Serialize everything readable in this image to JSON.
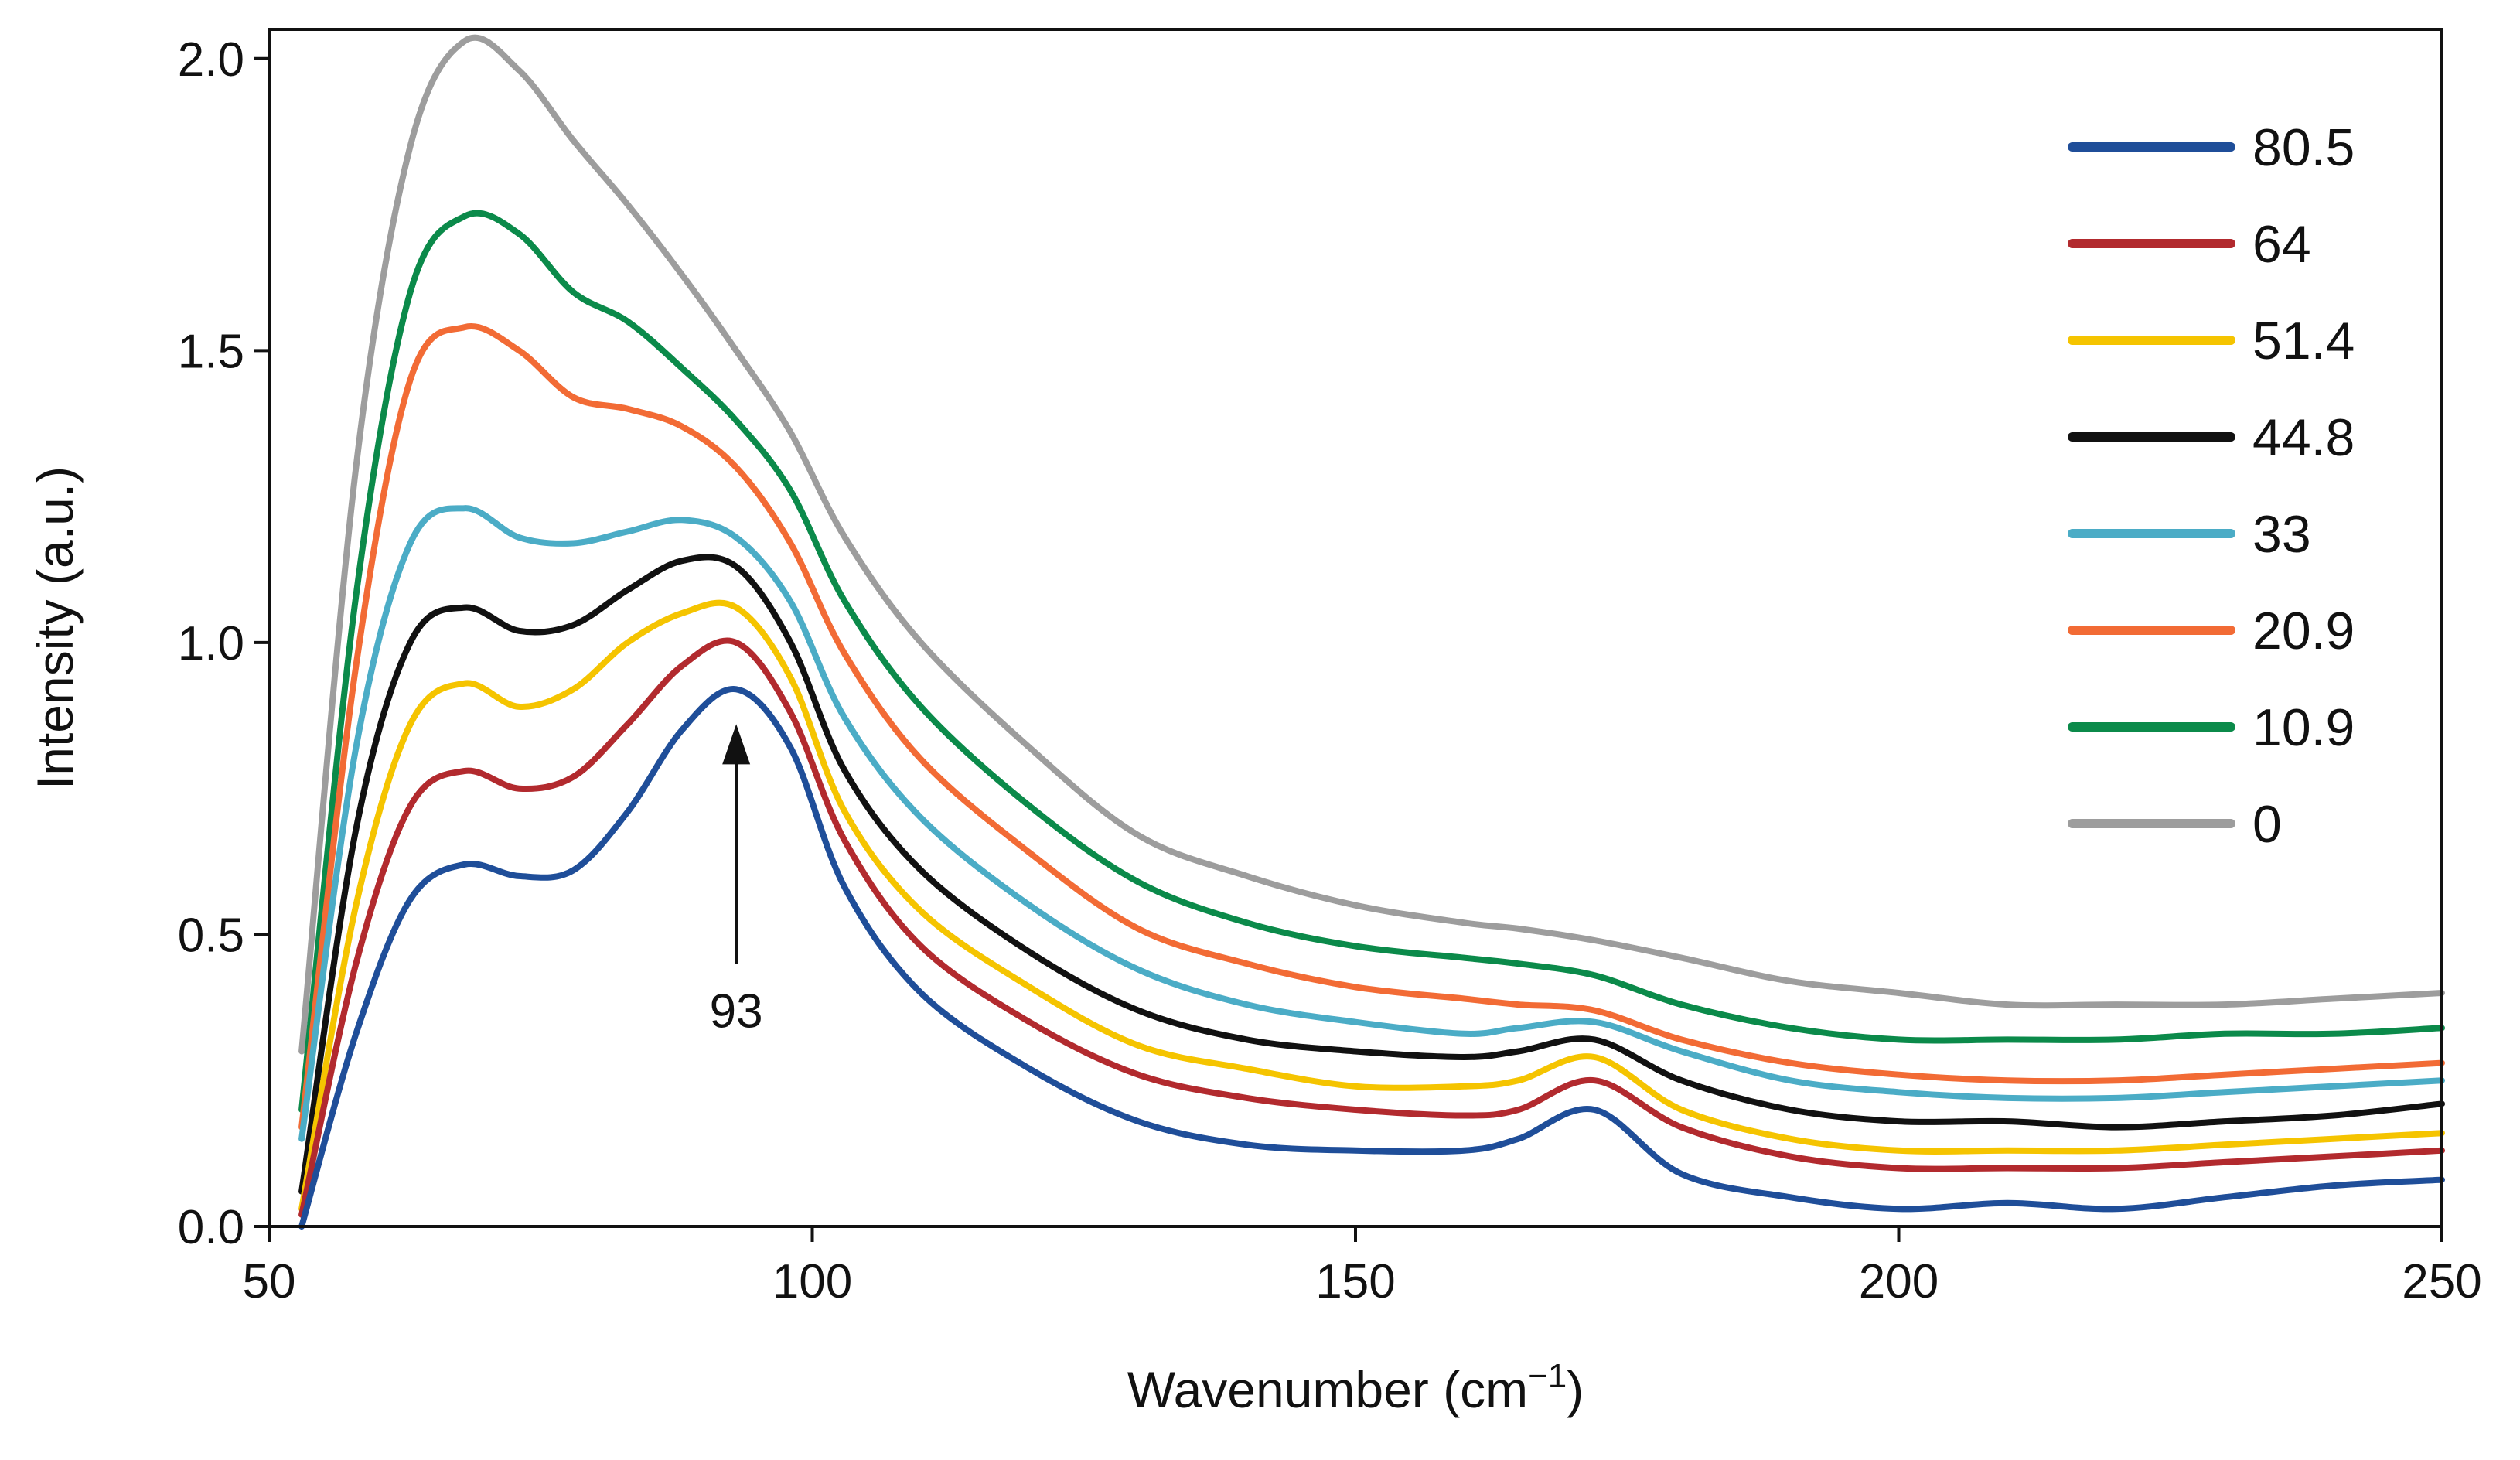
{
  "chart_data": {
    "type": "line",
    "title": "",
    "xlabel": "Wavenumber (cm",
    "xlabel_sup": "−1",
    "xlabel_close": ")",
    "ylabel": "Intensity (a.u.)",
    "xlim": [
      50,
      250
    ],
    "ylim": [
      0,
      2.05
    ],
    "xticks": [
      50,
      100,
      150,
      200,
      250
    ],
    "xtick_labels": [
      "50",
      "100",
      "150",
      "200",
      "250"
    ],
    "yticks": [
      0,
      0.5,
      1.0,
      1.5,
      2.0
    ],
    "ytick_labels": [
      "0.0",
      "0.5",
      "1.0",
      "1.5",
      "2.0"
    ],
    "grid": false,
    "legend_position": "top-right",
    "annotation": {
      "label": "93",
      "x": 93,
      "y": 0.9,
      "type": "arrow-up"
    },
    "x": [
      53,
      58,
      63,
      68,
      73,
      78,
      83,
      88,
      93,
      98,
      103,
      110,
      120,
      130,
      140,
      150,
      160,
      165,
      172,
      180,
      190,
      200,
      210,
      220,
      230,
      240,
      250
    ],
    "series": [
      {
        "name": "80.5",
        "color": "#1f4e99",
        "values": [
          0.0,
          0.33,
          0.56,
          0.62,
          0.6,
          0.61,
          0.71,
          0.85,
          0.92,
          0.82,
          0.58,
          0.4,
          0.27,
          0.18,
          0.14,
          0.13,
          0.13,
          0.15,
          0.2,
          0.09,
          0.05,
          0.03,
          0.04,
          0.03,
          0.05,
          0.07,
          0.08
        ]
      },
      {
        "name": "64",
        "color": "#b22a2e",
        "values": [
          0.02,
          0.45,
          0.72,
          0.78,
          0.75,
          0.77,
          0.86,
          0.96,
          1.0,
          0.88,
          0.66,
          0.48,
          0.35,
          0.26,
          0.22,
          0.2,
          0.19,
          0.2,
          0.25,
          0.17,
          0.12,
          0.1,
          0.1,
          0.1,
          0.11,
          0.12,
          0.13
        ]
      },
      {
        "name": "51.4",
        "color": "#f5c400",
        "values": [
          0.03,
          0.55,
          0.86,
          0.93,
          0.89,
          0.92,
          1.0,
          1.05,
          1.06,
          0.94,
          0.71,
          0.54,
          0.41,
          0.31,
          0.27,
          0.24,
          0.24,
          0.25,
          0.29,
          0.2,
          0.15,
          0.13,
          0.13,
          0.13,
          0.14,
          0.15,
          0.16
        ]
      },
      {
        "name": "44.8",
        "color": "#111111",
        "values": [
          0.06,
          0.68,
          1.0,
          1.06,
          1.02,
          1.03,
          1.09,
          1.14,
          1.13,
          1.0,
          0.78,
          0.61,
          0.47,
          0.37,
          0.32,
          0.3,
          0.29,
          0.3,
          0.32,
          0.25,
          0.2,
          0.18,
          0.18,
          0.17,
          0.18,
          0.19,
          0.21
        ]
      },
      {
        "name": "33",
        "color": "#4bacc6",
        "values": [
          0.15,
          0.82,
          1.17,
          1.23,
          1.18,
          1.17,
          1.19,
          1.21,
          1.18,
          1.07,
          0.87,
          0.7,
          0.55,
          0.44,
          0.38,
          0.35,
          0.33,
          0.34,
          0.35,
          0.3,
          0.25,
          0.23,
          0.22,
          0.22,
          0.23,
          0.24,
          0.25
        ]
      },
      {
        "name": "20.9",
        "color": "#f26b35",
        "values": [
          0.17,
          0.96,
          1.45,
          1.54,
          1.5,
          1.42,
          1.4,
          1.37,
          1.3,
          1.17,
          0.98,
          0.8,
          0.64,
          0.51,
          0.45,
          0.41,
          0.39,
          0.38,
          0.37,
          0.32,
          0.28,
          0.26,
          0.25,
          0.25,
          0.26,
          0.27,
          0.28
        ]
      },
      {
        "name": "10.9",
        "color": "#0b8a4a",
        "values": [
          0.2,
          1.08,
          1.6,
          1.73,
          1.7,
          1.6,
          1.55,
          1.47,
          1.38,
          1.26,
          1.07,
          0.89,
          0.72,
          0.59,
          0.52,
          0.48,
          0.46,
          0.45,
          0.43,
          0.38,
          0.34,
          0.32,
          0.32,
          0.32,
          0.33,
          0.33,
          0.34
        ]
      },
      {
        "name": "0",
        "color": "#9d9d9d",
        "values": [
          0.3,
          1.3,
          1.85,
          2.03,
          1.98,
          1.86,
          1.75,
          1.63,
          1.5,
          1.36,
          1.18,
          1.0,
          0.82,
          0.67,
          0.6,
          0.55,
          0.52,
          0.51,
          0.49,
          0.46,
          0.42,
          0.4,
          0.38,
          0.38,
          0.38,
          0.39,
          0.4
        ]
      }
    ]
  }
}
